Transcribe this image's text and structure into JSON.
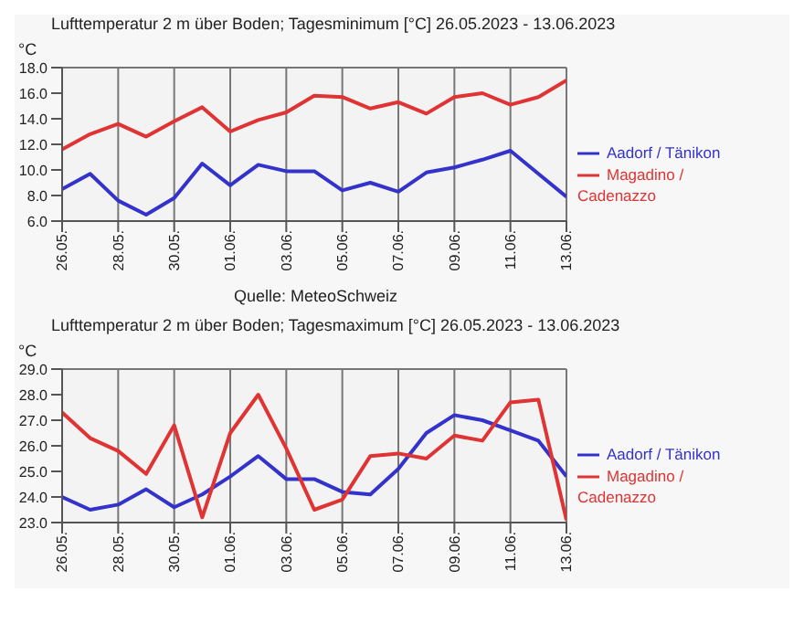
{
  "chart_data": [
    {
      "type": "line",
      "title": "Lufttemperatur 2 m über Boden; Tagesminimum [°C]  26.05.2023 - 13.06.2023",
      "ylabel": "°C",
      "categories": [
        "26.05.",
        null,
        "28.05.",
        null,
        "30.05.",
        null,
        "01.06.",
        null,
        "03.06.",
        null,
        "05.06.",
        null,
        "07.06.",
        null,
        "09.06.",
        null,
        "11.06.",
        null,
        "13.06."
      ],
      "series": [
        {
          "name": "Aadorf / Tänikon",
          "color": "#3333cc",
          "values": [
            8.5,
            9.7,
            7.6,
            6.5,
            7.8,
            10.5,
            8.8,
            10.4,
            9.9,
            9.9,
            8.4,
            9.0,
            8.3,
            9.8,
            10.2,
            10.8,
            11.5,
            9.7,
            7.9
          ]
        },
        {
          "name": "Magadino / Cadenazzo",
          "color": "#e03333",
          "values": [
            11.6,
            12.8,
            13.6,
            12.6,
            13.8,
            14.9,
            13.0,
            13.9,
            14.5,
            15.8,
            15.7,
            14.8,
            15.3,
            14.4,
            15.7,
            16.0,
            15.1,
            15.7,
            17.0
          ]
        }
      ],
      "ylim": [
        6,
        18
      ],
      "yticks": [
        {
          "value": 6,
          "label": "6.0"
        },
        {
          "value": 8,
          "label": "8.0"
        },
        {
          "value": 10,
          "label": "10.0"
        },
        {
          "value": 12,
          "label": "12.0"
        },
        {
          "value": 14,
          "label": "14.0"
        },
        {
          "value": 16,
          "label": "16.0"
        },
        {
          "value": 18,
          "label": "18.0"
        }
      ],
      "grid": true,
      "legend": "right",
      "annotations": [
        "Quelle: MeteoSchweiz"
      ]
    },
    {
      "type": "line",
      "title": "Lufttemperatur 2 m über Boden; Tagesmaximum [°C]  26.05.2023 - 13.06.2023",
      "ylabel": "°C",
      "categories": [
        "26.05.",
        null,
        "28.05.",
        null,
        "30.05.",
        null,
        "01.06.",
        null,
        "03.06.",
        null,
        "05.06.",
        null,
        "07.06.",
        null,
        "09.06.",
        null,
        "11.06.",
        null,
        "13.06."
      ],
      "series": [
        {
          "name": "Aadorf / Tänikon",
          "color": "#3333cc",
          "values": [
            24.0,
            23.5,
            23.7,
            24.3,
            23.6,
            24.1,
            24.8,
            25.6,
            24.7,
            24.7,
            24.2,
            24.1,
            25.1,
            26.5,
            27.2,
            27.0,
            26.6,
            26.2,
            24.8
          ]
        },
        {
          "name": "Magadino / Cadenazzo",
          "color": "#e03333",
          "values": [
            27.3,
            26.3,
            25.8,
            24.9,
            26.8,
            23.2,
            26.5,
            28.0,
            25.9,
            23.5,
            23.9,
            25.6,
            25.7,
            25.5,
            26.4,
            26.2,
            27.7,
            27.8,
            23.1
          ]
        }
      ],
      "ylim": [
        23,
        29
      ],
      "yticks": [
        {
          "value": 23,
          "label": "23.0"
        },
        {
          "value": 24,
          "label": "24.0"
        },
        {
          "value": 25,
          "label": "25.0"
        },
        {
          "value": 26,
          "label": "26.0"
        },
        {
          "value": 27,
          "label": "27.0"
        },
        {
          "value": 28,
          "label": "28.0"
        },
        {
          "value": 29,
          "label": "29.0"
        }
      ],
      "grid": true,
      "legend": "right"
    }
  ]
}
